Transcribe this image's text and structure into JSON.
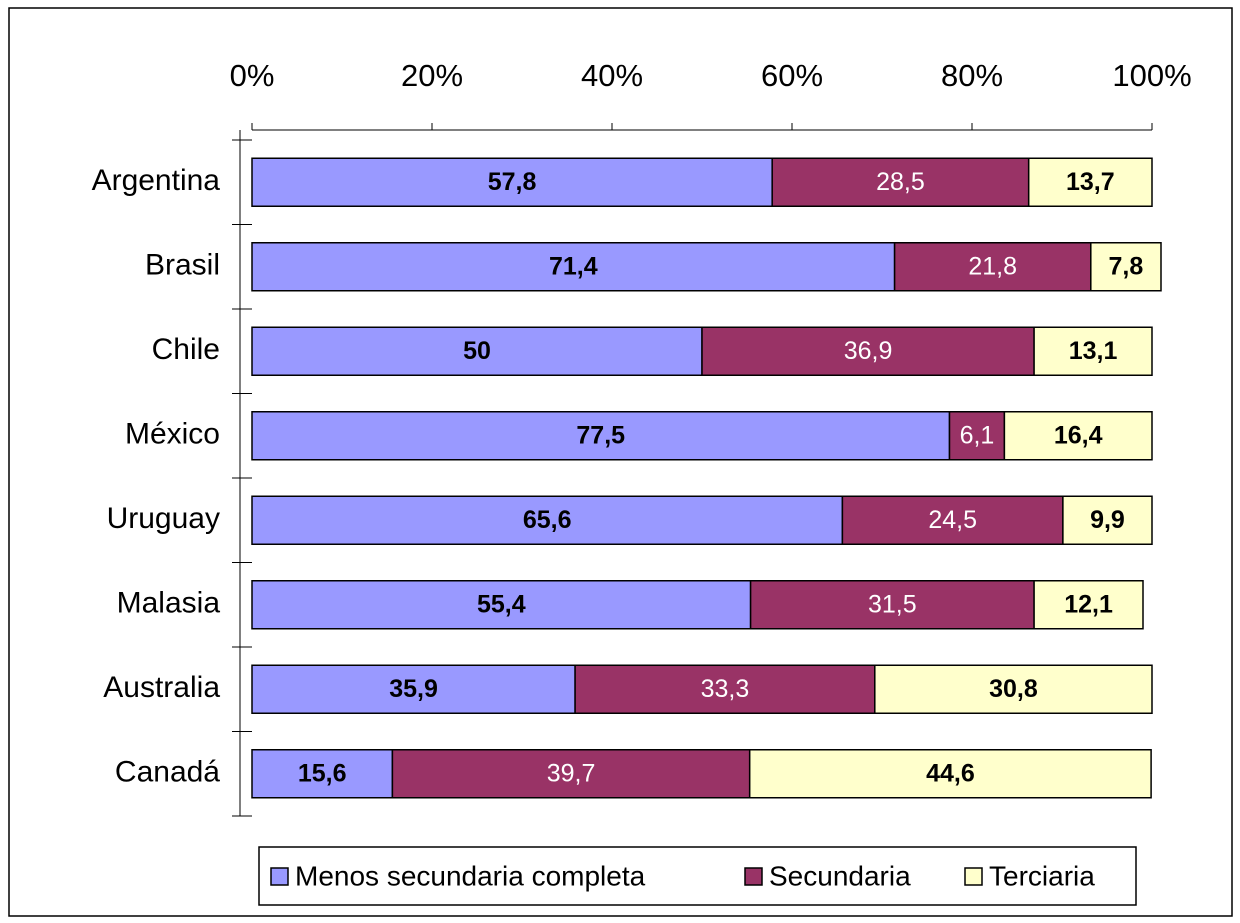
{
  "chart_data": {
    "type": "stacked_bar_horizontal",
    "categories": [
      "Argentina",
      "Brasil",
      "Chile",
      "México",
      "Uruguay",
      "Malasia",
      "Australia",
      "Canadá"
    ],
    "series": [
      {
        "name": "Menos secundaria completa",
        "color": "#9999ff",
        "values": [
          57.8,
          71.4,
          50,
          77.5,
          65.6,
          55.4,
          35.9,
          15.6
        ],
        "value_labels": [
          "57,8",
          "71,4",
          "50",
          "77,5",
          "65,6",
          "55,4",
          "35,9",
          "15,6"
        ]
      },
      {
        "name": "Secundaria",
        "color": "#993366",
        "values": [
          28.5,
          21.8,
          36.9,
          6.1,
          24.5,
          31.5,
          33.3,
          39.7
        ],
        "value_labels": [
          "28,5",
          "21,8",
          "36,9",
          "6,1",
          "24,5",
          "31,5",
          "33,3",
          "39,7"
        ]
      },
      {
        "name": "Terciaria",
        "color": "#ffffcc",
        "values": [
          13.7,
          7.8,
          13.1,
          16.4,
          9.9,
          12.1,
          30.8,
          44.6
        ],
        "value_labels": [
          "13,7",
          "7,8",
          "13,1",
          "16,4",
          "9,9",
          "12,1",
          "30,8",
          "44,6"
        ]
      }
    ],
    "xlim": [
      0,
      100
    ],
    "xticks": [
      {
        "value": 0,
        "label": "0%"
      },
      {
        "value": 20,
        "label": "20%"
      },
      {
        "value": 40,
        "label": "40%"
      },
      {
        "value": 60,
        "label": "60%"
      },
      {
        "value": 80,
        "label": "80%"
      },
      {
        "value": 100,
        "label": "100%"
      }
    ],
    "legend": "bottom"
  }
}
